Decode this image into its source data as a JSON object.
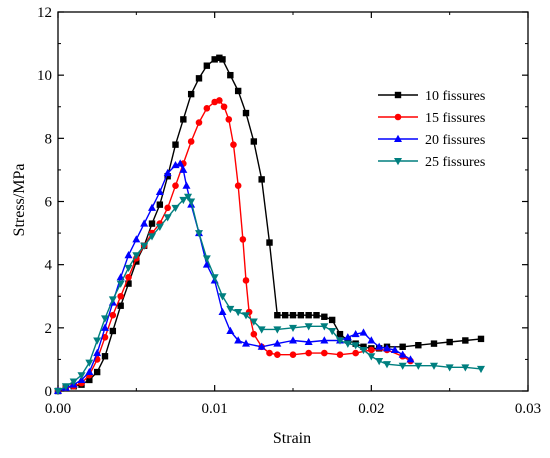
{
  "chart_data": {
    "type": "line",
    "title": "",
    "xlabel": "Strain",
    "ylabel": "Stress/MPa",
    "xlim": [
      0.0,
      0.03
    ],
    "ylim": [
      0,
      12
    ],
    "x_ticks": [
      "0.00",
      "0.01",
      "0.02",
      "0.03"
    ],
    "x_tick_values": [
      0.0,
      0.01,
      0.02,
      0.03
    ],
    "y_ticks": [
      "0",
      "2",
      "4",
      "6",
      "8",
      "10",
      "12"
    ],
    "y_tick_values": [
      0,
      2,
      4,
      6,
      8,
      10,
      12
    ],
    "grid": false,
    "legend_position": "right",
    "series": [
      {
        "name": "10  fissures",
        "color": "#000000",
        "marker": "square",
        "x": [
          0.0,
          0.0005,
          0.001,
          0.0015,
          0.002,
          0.0025,
          0.003,
          0.0035,
          0.004,
          0.0045,
          0.005,
          0.0055,
          0.006,
          0.0065,
          0.007,
          0.0075,
          0.008,
          0.0085,
          0.009,
          0.0095,
          0.01,
          0.0103,
          0.0105,
          0.011,
          0.0115,
          0.012,
          0.0125,
          0.013,
          0.0135,
          0.014,
          0.0145,
          0.015,
          0.0155,
          0.016,
          0.0165,
          0.017,
          0.0175,
          0.018,
          0.0185,
          0.019,
          0.0195,
          0.02,
          0.0205,
          0.021,
          0.022,
          0.023,
          0.024,
          0.025,
          0.026,
          0.027
        ],
        "y": [
          0.0,
          0.1,
          0.15,
          0.2,
          0.35,
          0.6,
          1.1,
          1.9,
          2.7,
          3.4,
          4.1,
          4.6,
          5.3,
          5.9,
          6.8,
          7.8,
          8.6,
          9.4,
          9.9,
          10.3,
          10.5,
          10.55,
          10.5,
          10.0,
          9.5,
          8.8,
          7.9,
          6.7,
          4.7,
          2.4,
          2.4,
          2.4,
          2.4,
          2.4,
          2.4,
          2.35,
          2.25,
          1.8,
          1.6,
          1.5,
          1.4,
          1.35,
          1.35,
          1.4,
          1.4,
          1.45,
          1.5,
          1.55,
          1.6,
          1.65
        ]
      },
      {
        "name": "15 fissures",
        "color": "#ff0000",
        "marker": "circle",
        "x": [
          0.0,
          0.0005,
          0.001,
          0.0015,
          0.002,
          0.0025,
          0.003,
          0.0035,
          0.004,
          0.0045,
          0.005,
          0.0055,
          0.006,
          0.0065,
          0.007,
          0.0075,
          0.008,
          0.0085,
          0.009,
          0.0095,
          0.01,
          0.0103,
          0.0106,
          0.0109,
          0.0112,
          0.0115,
          0.0118,
          0.012,
          0.0122,
          0.0125,
          0.013,
          0.0135,
          0.014,
          0.015,
          0.016,
          0.017,
          0.018,
          0.019,
          0.02,
          0.021,
          0.022,
          0.0225
        ],
        "y": [
          0.0,
          0.1,
          0.15,
          0.25,
          0.5,
          1.0,
          1.7,
          2.4,
          3.0,
          3.6,
          4.2,
          4.6,
          5.0,
          5.3,
          5.8,
          6.5,
          7.2,
          7.9,
          8.5,
          8.95,
          9.15,
          9.2,
          9.0,
          8.6,
          7.8,
          6.5,
          4.8,
          3.5,
          2.5,
          1.8,
          1.4,
          1.2,
          1.15,
          1.15,
          1.2,
          1.2,
          1.15,
          1.2,
          1.3,
          1.3,
          1.1,
          0.95
        ]
      },
      {
        "name": "20 fissures",
        "color": "#0000ff",
        "marker": "triangle-up",
        "x": [
          0.0,
          0.0005,
          0.001,
          0.0015,
          0.002,
          0.0025,
          0.003,
          0.0035,
          0.004,
          0.0045,
          0.005,
          0.0055,
          0.006,
          0.0065,
          0.007,
          0.0075,
          0.0078,
          0.008,
          0.0082,
          0.0085,
          0.009,
          0.0095,
          0.01,
          0.0105,
          0.011,
          0.0115,
          0.012,
          0.013,
          0.014,
          0.015,
          0.016,
          0.017,
          0.018,
          0.0185,
          0.019,
          0.0195,
          0.02,
          0.0205,
          0.021,
          0.0215,
          0.022,
          0.0225
        ],
        "y": [
          0.0,
          0.1,
          0.2,
          0.35,
          0.6,
          1.2,
          2.0,
          2.8,
          3.6,
          4.3,
          4.8,
          5.3,
          5.8,
          6.3,
          6.9,
          7.15,
          7.2,
          7.0,
          6.5,
          5.9,
          5.0,
          4.0,
          3.5,
          2.5,
          1.9,
          1.6,
          1.5,
          1.4,
          1.5,
          1.6,
          1.55,
          1.6,
          1.6,
          1.7,
          1.8,
          1.85,
          1.6,
          1.4,
          1.35,
          1.3,
          1.15,
          1.0
        ]
      },
      {
        "name": "25 fissures",
        "color": "#007f7f",
        "marker": "triangle-down",
        "x": [
          0.0,
          0.0005,
          0.001,
          0.0015,
          0.002,
          0.0025,
          0.003,
          0.0035,
          0.004,
          0.0045,
          0.005,
          0.0055,
          0.006,
          0.0065,
          0.007,
          0.0075,
          0.008,
          0.0083,
          0.0085,
          0.009,
          0.0095,
          0.01,
          0.0105,
          0.011,
          0.0115,
          0.012,
          0.0125,
          0.013,
          0.014,
          0.015,
          0.016,
          0.017,
          0.0175,
          0.018,
          0.0185,
          0.019,
          0.0195,
          0.02,
          0.0205,
          0.021,
          0.022,
          0.023,
          0.024,
          0.025,
          0.026,
          0.027
        ],
        "y": [
          0.0,
          0.15,
          0.3,
          0.5,
          0.9,
          1.6,
          2.3,
          2.9,
          3.4,
          3.9,
          4.3,
          4.6,
          4.9,
          5.2,
          5.5,
          5.8,
          6.05,
          6.15,
          6.0,
          5.0,
          4.2,
          3.6,
          3.0,
          2.6,
          2.5,
          2.4,
          2.2,
          1.95,
          1.95,
          2.0,
          2.05,
          2.05,
          1.9,
          1.6,
          1.5,
          1.45,
          1.3,
          1.1,
          0.95,
          0.85,
          0.8,
          0.8,
          0.8,
          0.75,
          0.75,
          0.7
        ]
      }
    ]
  }
}
